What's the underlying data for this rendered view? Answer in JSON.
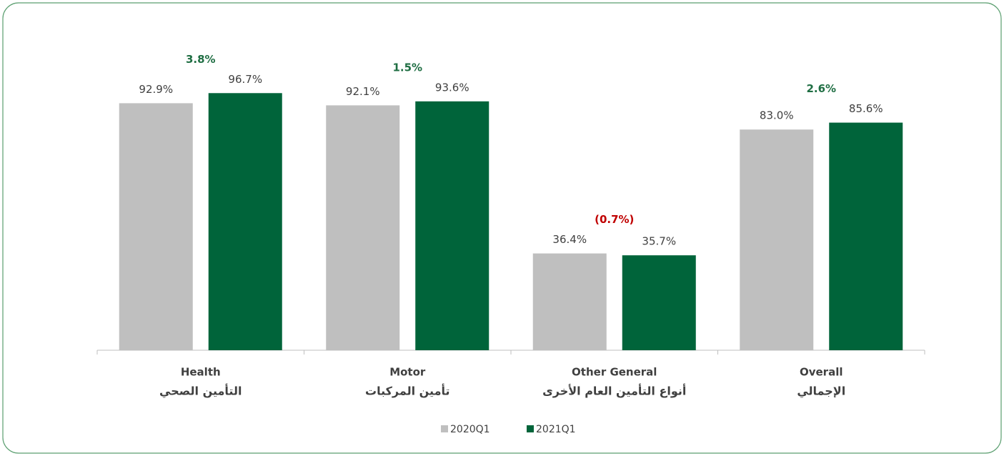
{
  "chart_data": {
    "type": "bar",
    "categories": [
      "Health",
      "Motor",
      "Other General",
      "Overall"
    ],
    "categories_ar": [
      "التأمين الصحي",
      "تأمين المركبات",
      "أنواع التأمين العام الأخرى",
      "الإجمالي"
    ],
    "series": [
      {
        "name": "2020Q1",
        "color": "#bfbfbf",
        "values": [
          92.9,
          92.1,
          36.4,
          83.0
        ],
        "value_labels": [
          "92.9%",
          "92.1%",
          "36.4%",
          "83.0%"
        ]
      },
      {
        "name": "2021Q1",
        "color": "#00643a",
        "values": [
          96.7,
          93.6,
          35.7,
          85.6
        ],
        "value_labels": [
          "96.7%",
          "93.6%",
          "35.7%",
          "85.6%"
        ]
      }
    ],
    "changes": [
      3.8,
      1.5,
      -0.7,
      2.6
    ],
    "change_labels": [
      "3.8%",
      "1.5%",
      "(0.7%)",
      "2.6%"
    ],
    "change_colors": [
      "#1f6e43",
      "#1f6e43",
      "#c00000",
      "#1f6e43"
    ],
    "ylim": [
      0,
      100
    ]
  }
}
